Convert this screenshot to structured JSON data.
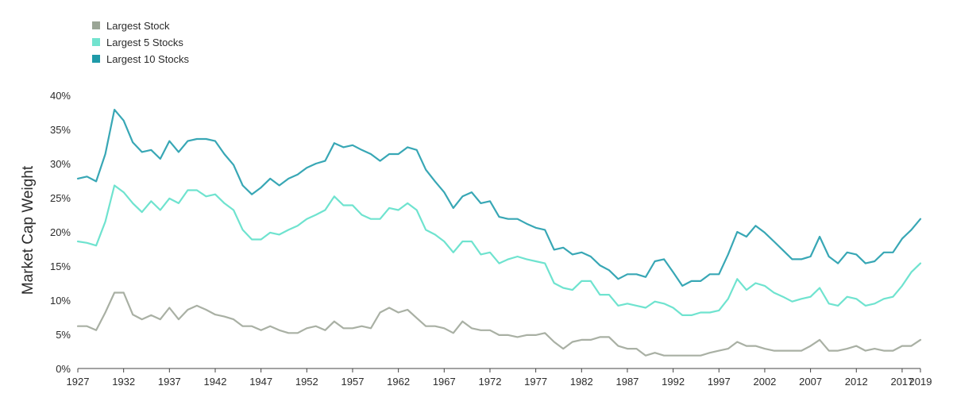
{
  "chart_data": {
    "type": "line",
    "ylabel": "Market Cap Weight",
    "xlabel": "",
    "title": "",
    "xlim": [
      1927,
      2019
    ],
    "ylim": [
      0,
      40
    ],
    "x_tick_labels": [
      "1927",
      "1932",
      "1937",
      "1942",
      "1947",
      "1952",
      "1957",
      "1962",
      "1967",
      "1972",
      "1977",
      "1982",
      "1987",
      "1992",
      "1997",
      "2002",
      "2007",
      "2012",
      "2017",
      "2019"
    ],
    "y_tick_labels": [
      "0%",
      "5%",
      "10%",
      "15%",
      "20%",
      "25%",
      "30%",
      "35%",
      "40%"
    ],
    "grid": false,
    "legend_position": "top-left",
    "x": [
      1927,
      1928,
      1929,
      1930,
      1931,
      1932,
      1933,
      1934,
      1935,
      1936,
      1937,
      1938,
      1939,
      1940,
      1941,
      1942,
      1943,
      1944,
      1945,
      1946,
      1947,
      1948,
      1949,
      1950,
      1951,
      1952,
      1953,
      1954,
      1955,
      1956,
      1957,
      1958,
      1959,
      1960,
      1961,
      1962,
      1963,
      1964,
      1965,
      1966,
      1967,
      1968,
      1969,
      1970,
      1971,
      1972,
      1973,
      1974,
      1975,
      1976,
      1977,
      1978,
      1979,
      1980,
      1981,
      1982,
      1983,
      1984,
      1985,
      1986,
      1987,
      1988,
      1989,
      1990,
      1991,
      1992,
      1993,
      1994,
      1995,
      1996,
      1997,
      1998,
      1999,
      2000,
      2001,
      2002,
      2003,
      2004,
      2005,
      2006,
      2007,
      2008,
      2009,
      2010,
      2011,
      2012,
      2013,
      2014,
      2015,
      2016,
      2017,
      2018,
      2019
    ],
    "series": [
      {
        "name": "Largest Stock",
        "color": "#a9b0a4",
        "values": [
          6.2,
          6.2,
          5.6,
          8.2,
          11.1,
          11.1,
          7.9,
          7.2,
          7.8,
          7.2,
          8.9,
          7.2,
          8.6,
          9.2,
          8.6,
          7.9,
          7.6,
          7.2,
          6.2,
          6.2,
          5.6,
          6.2,
          5.6,
          5.2,
          5.2,
          5.9,
          6.2,
          5.6,
          6.9,
          5.9,
          5.9,
          6.2,
          5.9,
          8.2,
          8.9,
          8.2,
          8.6,
          7.4,
          6.2,
          6.2,
          5.9,
          5.2,
          6.9,
          5.9,
          5.6,
          5.6,
          4.9,
          4.9,
          4.6,
          4.9,
          4.9,
          5.2,
          3.9,
          2.9,
          3.9,
          4.2,
          4.2,
          4.6,
          4.6,
          3.3,
          2.9,
          2.9,
          1.9,
          2.3,
          1.9,
          1.9,
          1.9,
          1.9,
          1.9,
          2.3,
          2.6,
          2.9,
          3.9,
          3.3,
          3.3,
          2.9,
          2.6,
          2.6,
          2.6,
          2.6,
          3.3,
          4.2,
          2.6,
          2.6,
          2.9,
          3.3,
          2.6,
          2.9,
          2.6,
          2.6,
          3.3,
          3.3,
          4.2
        ]
      },
      {
        "name": "Largest 5 Stocks",
        "color": "#6fe3cf",
        "values": [
          18.6,
          18.4,
          18.0,
          21.5,
          26.8,
          25.8,
          24.2,
          22.9,
          24.5,
          23.2,
          24.9,
          24.2,
          26.1,
          26.1,
          25.2,
          25.5,
          24.2,
          23.2,
          20.3,
          18.9,
          18.9,
          19.9,
          19.6,
          20.3,
          20.9,
          21.9,
          22.5,
          23.2,
          25.2,
          23.9,
          23.9,
          22.5,
          21.9,
          21.9,
          23.5,
          23.2,
          24.2,
          23.2,
          20.3,
          19.6,
          18.6,
          17.0,
          18.6,
          18.6,
          16.7,
          17.0,
          15.4,
          16.0,
          16.4,
          16.0,
          15.7,
          15.4,
          12.5,
          11.8,
          11.5,
          12.8,
          12.8,
          10.8,
          10.8,
          9.2,
          9.5,
          9.2,
          8.9,
          9.8,
          9.5,
          8.9,
          7.8,
          7.8,
          8.2,
          8.2,
          8.5,
          10.2,
          13.1,
          11.5,
          12.5,
          12.1,
          11.1,
          10.5,
          9.8,
          10.2,
          10.5,
          11.8,
          9.5,
          9.2,
          10.5,
          10.2,
          9.2,
          9.5,
          10.2,
          10.5,
          12.1,
          14.1,
          15.4
        ]
      },
      {
        "name": "Largest 10 Stocks",
        "color": "#38a7b5",
        "values": [
          27.8,
          28.1,
          27.4,
          31.4,
          37.9,
          36.3,
          33.1,
          31.7,
          32.0,
          30.7,
          33.3,
          31.7,
          33.3,
          33.6,
          33.6,
          33.3,
          31.4,
          29.8,
          26.8,
          25.5,
          26.5,
          27.8,
          26.8,
          27.8,
          28.4,
          29.4,
          30.0,
          30.4,
          33.0,
          32.4,
          32.7,
          32.0,
          31.4,
          30.4,
          31.4,
          31.4,
          32.4,
          32.0,
          29.1,
          27.4,
          25.8,
          23.5,
          25.2,
          25.8,
          24.2,
          24.5,
          22.2,
          21.9,
          21.9,
          21.2,
          20.6,
          20.3,
          17.4,
          17.7,
          16.7,
          17.0,
          16.4,
          15.1,
          14.4,
          13.1,
          13.8,
          13.8,
          13.4,
          15.7,
          16.0,
          14.1,
          12.1,
          12.8,
          12.8,
          13.8,
          13.8,
          16.7,
          20.0,
          19.3,
          20.9,
          19.9,
          18.6,
          17.3,
          16.0,
          16.0,
          16.4,
          19.3,
          16.4,
          15.4,
          17.0,
          16.7,
          15.4,
          15.7,
          17.0,
          17.0,
          19.0,
          20.3,
          21.9
        ]
      }
    ]
  }
}
